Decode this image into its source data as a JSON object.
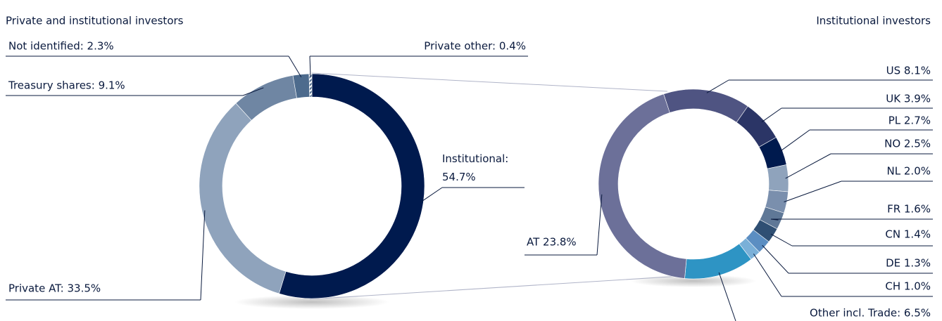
{
  "chart_data": [
    {
      "type": "donut",
      "title": "Private and institutional investors",
      "values": [
        54.7,
        33.5,
        9.1,
        2.3,
        0.4
      ],
      "value_labels": [
        "Institutional: 54.7%",
        "Private AT: 33.5%",
        "Treasury shares: 9.1%",
        "Not identified: 2.3%",
        "Private other: 0.4%"
      ],
      "colors": [
        "#001a4e",
        "#8fa3bc",
        "#6f86a3",
        "#4d6b8d",
        "#a9bed6"
      ]
    },
    {
      "type": "donut",
      "title": "Institutional investors",
      "values": [
        8.1,
        3.9,
        2.7,
        2.5,
        2.0,
        1.6,
        1.4,
        1.3,
        1.0,
        6.5,
        23.8
      ],
      "value_labels": [
        "US 8.1%",
        "UK 3.9%",
        "PL 2.7%",
        "NO 2.5%",
        "NL 2.0%",
        "FR 1.6%",
        "CN 1.4%",
        "DE 1.3%",
        "CH 1.0%",
        "Other incl. Trade: 6.5%",
        "AT 23.8%"
      ],
      "colors": [
        "#4f5482",
        "#2b3566",
        "#001a4e",
        "#8fa3bc",
        "#7a8fad",
        "#5f7897",
        "#2f4f73",
        "#5b8ec2",
        "#7ab0d8",
        "#2e94c4",
        "#6c7099"
      ]
    }
  ]
}
